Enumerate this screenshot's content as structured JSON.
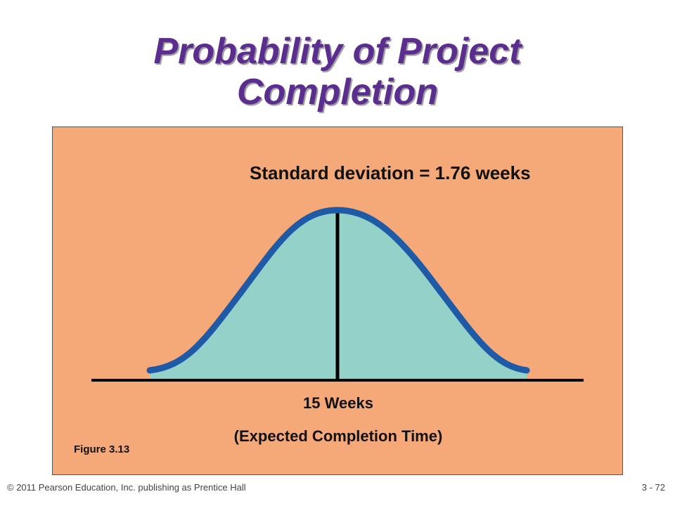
{
  "slide": {
    "title_line1": "Probability of Project",
    "title_line2": "Completion"
  },
  "figure": {
    "std_label": "Standard deviation = 1.76 weeks",
    "mean_label": "15 Weeks",
    "mean_sublabel": "(Expected Completion Time)",
    "caption": "Figure 3.13",
    "colors": {
      "panel_bg": "#f5a878",
      "curve_fill": "#94d1c9",
      "curve_stroke": "#1f5aa6",
      "axis": "#000000",
      "title": "#5b2d8e"
    }
  },
  "footer": {
    "copyright": "© 2011 Pearson Education, Inc. publishing as Prentice Hall",
    "page_number": "3 - 72"
  }
}
